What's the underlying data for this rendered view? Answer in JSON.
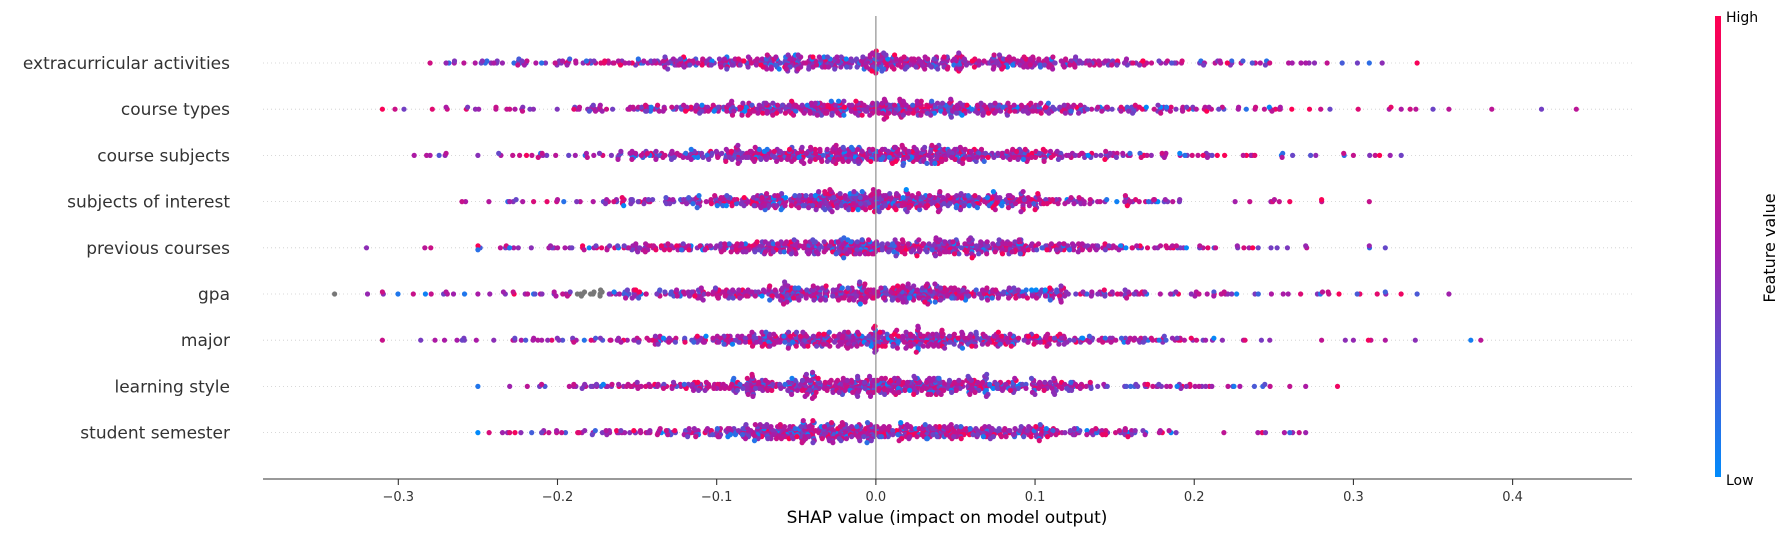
{
  "chart_data": {
    "type": "scatter",
    "subtype": "beeswarm",
    "xlabel": "SHAP value (impact on model output)",
    "xlim": [
      -0.385,
      0.475
    ],
    "x_ticks": [
      -0.3,
      -0.2,
      -0.1,
      0.0,
      0.1,
      0.2,
      0.3,
      0.4
    ],
    "x_tick_labels": [
      "−0.3",
      "−0.2",
      "−0.1",
      "0.0",
      "0.1",
      "0.2",
      "0.3",
      "0.4"
    ],
    "zero_line": 0.0,
    "grid": false,
    "features": [
      {
        "name": "extracurricular activities",
        "min": -0.28,
        "max": 0.34,
        "extremes": [
          -0.28,
          -0.27,
          -0.24,
          -0.21,
          0.27,
          0.31,
          0.34
        ],
        "spread": 0.125
      },
      {
        "name": "course types",
        "min": -0.31,
        "max": 0.44,
        "extremes": [
          -0.31,
          -0.27,
          -0.23,
          0.33,
          0.35,
          0.36,
          0.44
        ],
        "spread": 0.13
      },
      {
        "name": "course subjects",
        "min": -0.29,
        "max": 0.33,
        "extremes": [
          -0.29,
          -0.28,
          -0.27,
          -0.25,
          0.3,
          0.33
        ],
        "spread": 0.12
      },
      {
        "name": "subjects of interest",
        "min": -0.26,
        "max": 0.31,
        "extremes": [
          -0.26,
          -0.23,
          -0.2,
          0.26,
          0.28,
          0.31
        ],
        "spread": 0.1
      },
      {
        "name": "previous courses",
        "min": -0.32,
        "max": 0.32,
        "extremes": [
          -0.32,
          -0.25,
          -0.23,
          0.27,
          0.31,
          0.32
        ],
        "spread": 0.11
      },
      {
        "name": "gpa",
        "min": -0.34,
        "max": 0.36,
        "extremes": [
          -0.34,
          -0.31,
          -0.27,
          -0.25,
          0.32,
          0.34,
          0.36
        ],
        "spread": 0.12
      },
      {
        "name": "major",
        "min": -0.31,
        "max": 0.38,
        "extremes": [
          -0.31,
          -0.24,
          -0.22,
          0.28,
          0.3,
          0.32,
          0.38
        ],
        "spread": 0.11
      },
      {
        "name": "learning style",
        "min": -0.25,
        "max": 0.29,
        "extremes": [
          -0.25,
          -0.23,
          -0.21,
          0.26,
          0.27,
          0.29
        ],
        "spread": 0.1
      },
      {
        "name": "student semester",
        "min": -0.25,
        "max": 0.27,
        "extremes": [
          -0.25,
          -0.23,
          -0.21,
          0.24,
          0.26,
          0.27
        ],
        "spread": 0.1
      }
    ],
    "colorbar": {
      "title": "Feature value",
      "high_label": "High",
      "low_label": "Low",
      "high_color": "#ff0051",
      "mid_color": "#a81ba8",
      "low_color": "#008bfb"
    },
    "missing_value_color": "#777777",
    "zero_line_color": "#999999"
  }
}
